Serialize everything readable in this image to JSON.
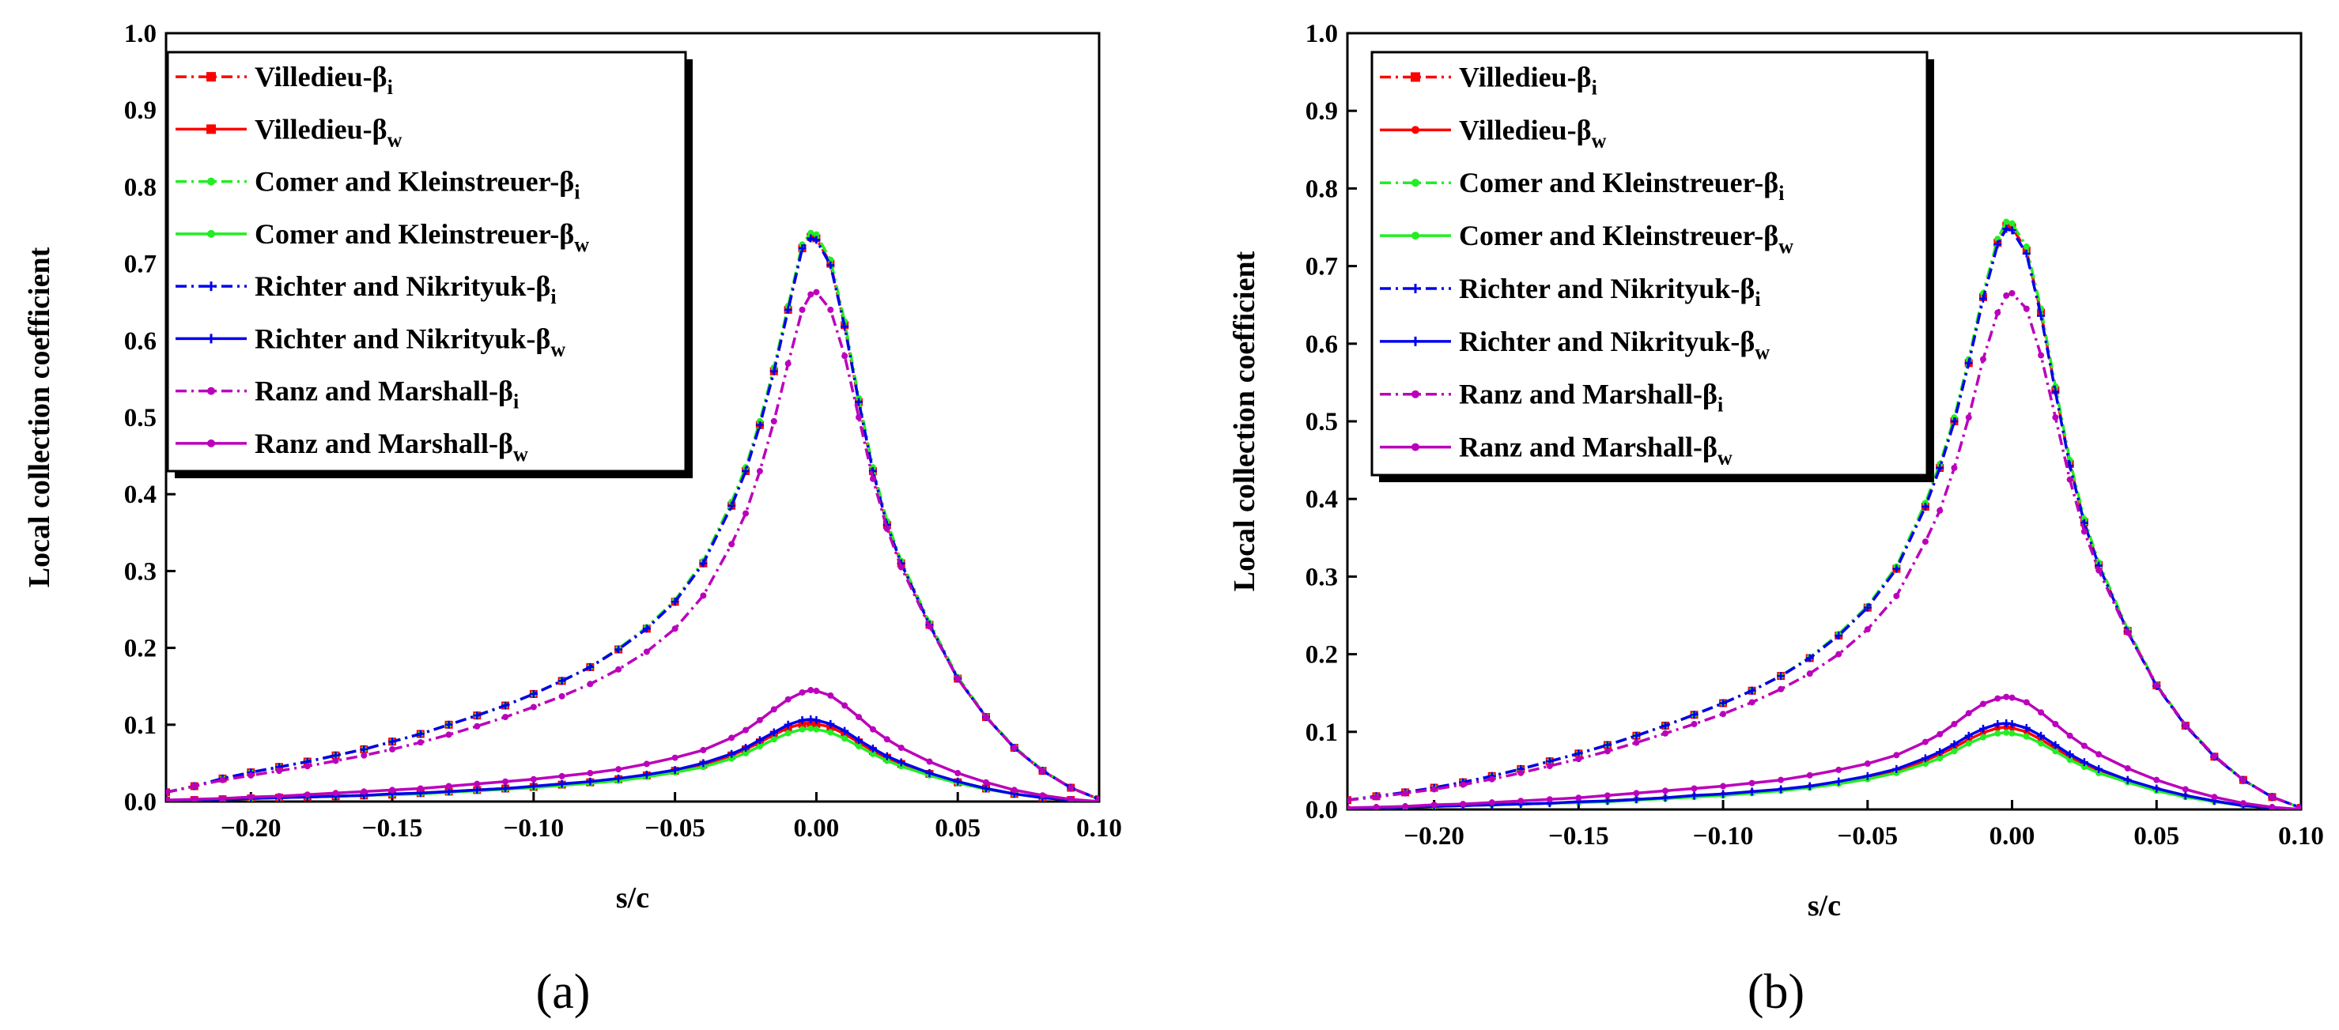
{
  "figure": {
    "panels": [
      {
        "label": "(a)"
      },
      {
        "label": "(b)"
      }
    ]
  },
  "chart_data": [
    {
      "type": "line",
      "panel": "(a)",
      "xlabel": "s/c",
      "ylabel": "Local collection coefficient",
      "xlim": [
        -0.23,
        0.1
      ],
      "ylim": [
        0.0,
        1.0
      ],
      "xticks": [
        "-0.20",
        "-0.15",
        "-0.10",
        "-0.05",
        "0.00",
        "0.05",
        "0.10"
      ],
      "yticks": [
        "0.0",
        "0.1",
        "0.2",
        "0.3",
        "0.4",
        "0.5",
        "0.6",
        "0.7",
        "0.8",
        "0.9",
        "1.0"
      ],
      "grid": false,
      "legend_position": "top-left",
      "x": [
        -0.23,
        -0.22,
        -0.21,
        -0.2,
        -0.19,
        -0.18,
        -0.17,
        -0.16,
        -0.15,
        -0.14,
        -0.13,
        -0.12,
        -0.11,
        -0.1,
        -0.09,
        -0.08,
        -0.07,
        -0.06,
        -0.05,
        -0.04,
        -0.03,
        -0.025,
        -0.02,
        -0.015,
        -0.01,
        -0.005,
        -0.002,
        0.0,
        0.005,
        0.01,
        0.015,
        0.02,
        0.025,
        0.03,
        0.04,
        0.05,
        0.06,
        0.07,
        0.08,
        0.09,
        0.1
      ],
      "series": [
        {
          "name": "Villedieu-βi",
          "label_main": "Villedieu-β",
          "label_sub": "i",
          "color": "#ff0000",
          "dash": "14,6,3,6",
          "marker": "square",
          "values": [
            0.012,
            0.02,
            0.03,
            0.038,
            0.045,
            0.052,
            0.06,
            0.068,
            0.078,
            0.088,
            0.1,
            0.112,
            0.125,
            0.14,
            0.157,
            0.175,
            0.198,
            0.225,
            0.26,
            0.31,
            0.385,
            0.43,
            0.49,
            0.56,
            0.64,
            0.72,
            0.735,
            0.733,
            0.7,
            0.62,
            0.52,
            0.43,
            0.36,
            0.31,
            0.23,
            0.16,
            0.11,
            0.07,
            0.04,
            0.018,
            0.003
          ]
        },
        {
          "name": "Villedieu-βw",
          "label_main": "Villedieu-β",
          "label_sub": "w",
          "color": "#ff0000",
          "dash": "",
          "marker": "square",
          "values": [
            0.001,
            0.002,
            0.003,
            0.004,
            0.005,
            0.006,
            0.007,
            0.008,
            0.009,
            0.011,
            0.013,
            0.015,
            0.017,
            0.019,
            0.022,
            0.025,
            0.029,
            0.034,
            0.04,
            0.048,
            0.06,
            0.068,
            0.077,
            0.087,
            0.096,
            0.101,
            0.102,
            0.101,
            0.097,
            0.088,
            0.077,
            0.066,
            0.057,
            0.049,
            0.036,
            0.025,
            0.017,
            0.01,
            0.005,
            0.002,
            0.0
          ]
        },
        {
          "name": "Comer and Kleinstreuer-βi",
          "label_main": "Comer and Kleinstreuer-β",
          "label_sub": "i",
          "color": "#22ee22",
          "dash": "14,6,3,6",
          "marker": "dot",
          "values": [
            0.012,
            0.02,
            0.03,
            0.038,
            0.045,
            0.052,
            0.06,
            0.068,
            0.078,
            0.088,
            0.1,
            0.112,
            0.125,
            0.14,
            0.157,
            0.175,
            0.199,
            0.227,
            0.262,
            0.313,
            0.39,
            0.435,
            0.495,
            0.565,
            0.645,
            0.725,
            0.74,
            0.738,
            0.705,
            0.625,
            0.525,
            0.435,
            0.365,
            0.313,
            0.233,
            0.162,
            0.111,
            0.071,
            0.041,
            0.018,
            0.003
          ]
        },
        {
          "name": "Comer and Kleinstreuer-βw",
          "label_main": "Comer and Kleinstreuer-β",
          "label_sub": "w",
          "color": "#22ee22",
          "dash": "",
          "marker": "dot",
          "values": [
            0.001,
            0.002,
            0.003,
            0.004,
            0.005,
            0.006,
            0.007,
            0.008,
            0.009,
            0.01,
            0.012,
            0.014,
            0.016,
            0.018,
            0.021,
            0.024,
            0.027,
            0.032,
            0.038,
            0.045,
            0.056,
            0.063,
            0.072,
            0.081,
            0.089,
            0.094,
            0.095,
            0.094,
            0.09,
            0.082,
            0.072,
            0.062,
            0.053,
            0.046,
            0.034,
            0.024,
            0.016,
            0.01,
            0.005,
            0.002,
            0.0
          ]
        },
        {
          "name": "Richter and Nikrityuk-βi",
          "label_main": "Richter and Nikrityuk-β",
          "label_sub": "i",
          "color": "#0000ee",
          "dash": "14,6,3,6",
          "marker": "cross",
          "values": [
            0.012,
            0.02,
            0.03,
            0.038,
            0.045,
            0.052,
            0.06,
            0.068,
            0.078,
            0.088,
            0.1,
            0.112,
            0.125,
            0.14,
            0.157,
            0.175,
            0.198,
            0.225,
            0.26,
            0.31,
            0.385,
            0.43,
            0.49,
            0.56,
            0.64,
            0.72,
            0.733,
            0.731,
            0.698,
            0.618,
            0.52,
            0.43,
            0.36,
            0.31,
            0.23,
            0.16,
            0.11,
            0.07,
            0.04,
            0.018,
            0.003
          ]
        },
        {
          "name": "Richter and Nikrityuk-βw",
          "label_main": "Richter and Nikrityuk-β",
          "label_sub": "w",
          "color": "#0000ee",
          "dash": "",
          "marker": "cross",
          "values": [
            0.001,
            0.002,
            0.003,
            0.004,
            0.005,
            0.006,
            0.007,
            0.008,
            0.01,
            0.011,
            0.013,
            0.015,
            0.017,
            0.02,
            0.023,
            0.026,
            0.03,
            0.035,
            0.041,
            0.05,
            0.062,
            0.07,
            0.08,
            0.09,
            0.1,
            0.106,
            0.107,
            0.106,
            0.101,
            0.092,
            0.08,
            0.069,
            0.059,
            0.051,
            0.037,
            0.026,
            0.017,
            0.01,
            0.005,
            0.002,
            0.0
          ]
        },
        {
          "name": "Ranz and Marshall-βi",
          "label_main": "Ranz and Marshall-β",
          "label_sub": "i",
          "color": "#bb00bb",
          "dash": "14,6,3,6",
          "marker": "dot",
          "values": [
            0.012,
            0.02,
            0.028,
            0.034,
            0.04,
            0.046,
            0.053,
            0.06,
            0.068,
            0.077,
            0.087,
            0.098,
            0.11,
            0.123,
            0.137,
            0.153,
            0.172,
            0.195,
            0.225,
            0.268,
            0.335,
            0.375,
            0.43,
            0.495,
            0.57,
            0.64,
            0.66,
            0.663,
            0.64,
            0.58,
            0.5,
            0.42,
            0.355,
            0.305,
            0.228,
            0.16,
            0.11,
            0.07,
            0.04,
            0.018,
            0.003
          ]
        },
        {
          "name": "Ranz and Marshall-βw",
          "label_main": "Ranz and Marshall-β",
          "label_sub": "w",
          "color": "#bb00bb",
          "dash": "",
          "marker": "dot",
          "values": [
            0.002,
            0.003,
            0.004,
            0.006,
            0.007,
            0.009,
            0.011,
            0.013,
            0.015,
            0.017,
            0.02,
            0.023,
            0.026,
            0.029,
            0.033,
            0.037,
            0.042,
            0.049,
            0.057,
            0.067,
            0.083,
            0.093,
            0.106,
            0.12,
            0.133,
            0.142,
            0.145,
            0.144,
            0.138,
            0.125,
            0.11,
            0.094,
            0.081,
            0.07,
            0.052,
            0.037,
            0.025,
            0.015,
            0.008,
            0.003,
            0.0
          ]
        }
      ]
    },
    {
      "type": "line",
      "panel": "(b)",
      "xlabel": "s/c",
      "ylabel": "Local collection coefficient",
      "xlim": [
        -0.23,
        0.1
      ],
      "ylim": [
        0.0,
        1.0
      ],
      "xticks": [
        "-0.20",
        "-0.15",
        "-0.10",
        "-0.05",
        "0.00",
        "0.05",
        "0.10"
      ],
      "yticks": [
        "0.0",
        "0.1",
        "0.2",
        "0.3",
        "0.4",
        "0.5",
        "0.6",
        "0.7",
        "0.8",
        "0.9",
        "1.0"
      ],
      "grid": false,
      "legend_position": "top-left",
      "x": [
        -0.23,
        -0.22,
        -0.21,
        -0.2,
        -0.19,
        -0.18,
        -0.17,
        -0.16,
        -0.15,
        -0.14,
        -0.13,
        -0.12,
        -0.11,
        -0.1,
        -0.09,
        -0.08,
        -0.07,
        -0.06,
        -0.05,
        -0.04,
        -0.03,
        -0.025,
        -0.02,
        -0.015,
        -0.01,
        -0.005,
        -0.002,
        0.0,
        0.005,
        0.01,
        0.015,
        0.02,
        0.025,
        0.03,
        0.04,
        0.05,
        0.06,
        0.07,
        0.08,
        0.09,
        0.1
      ],
      "series": [
        {
          "name": "Villedieu-βi",
          "label_main": "Villedieu-β",
          "label_sub": "i",
          "color": "#ff0000",
          "dash": "14,6,3,6",
          "marker": "square",
          "values": [
            0.012,
            0.017,
            0.022,
            0.028,
            0.035,
            0.043,
            0.052,
            0.062,
            0.072,
            0.083,
            0.095,
            0.108,
            0.122,
            0.137,
            0.153,
            0.172,
            0.195,
            0.224,
            0.26,
            0.31,
            0.39,
            0.44,
            0.5,
            0.575,
            0.66,
            0.73,
            0.752,
            0.75,
            0.72,
            0.64,
            0.54,
            0.445,
            0.37,
            0.315,
            0.23,
            0.16,
            0.108,
            0.068,
            0.038,
            0.016,
            0.002
          ]
        },
        {
          "name": "Villedieu-βw",
          "label_main": "Villedieu-β",
          "label_sub": "w",
          "color": "#ff0000",
          "dash": "",
          "marker": "dot",
          "values": [
            0.001,
            0.002,
            0.003,
            0.004,
            0.005,
            0.006,
            0.007,
            0.008,
            0.009,
            0.011,
            0.013,
            0.015,
            0.017,
            0.019,
            0.022,
            0.025,
            0.029,
            0.034,
            0.041,
            0.05,
            0.063,
            0.071,
            0.08,
            0.09,
            0.099,
            0.105,
            0.106,
            0.105,
            0.1,
            0.09,
            0.079,
            0.068,
            0.058,
            0.05,
            0.037,
            0.026,
            0.017,
            0.01,
            0.005,
            0.002,
            0.0
          ]
        },
        {
          "name": "Comer and Kleinstreuer-βi",
          "label_main": "Comer and Kleinstreuer-β",
          "label_sub": "i",
          "color": "#22ee22",
          "dash": "14,6,3,6",
          "marker": "dot",
          "values": [
            0.012,
            0.017,
            0.022,
            0.028,
            0.035,
            0.043,
            0.052,
            0.062,
            0.072,
            0.083,
            0.095,
            0.108,
            0.122,
            0.137,
            0.153,
            0.172,
            0.196,
            0.226,
            0.262,
            0.313,
            0.395,
            0.445,
            0.505,
            0.58,
            0.665,
            0.735,
            0.757,
            0.755,
            0.725,
            0.645,
            0.545,
            0.45,
            0.374,
            0.318,
            0.232,
            0.161,
            0.109,
            0.069,
            0.038,
            0.016,
            0.002
          ]
        },
        {
          "name": "Comer and Kleinstreuer-βw",
          "label_main": "Comer and Kleinstreuer-β",
          "label_sub": "w",
          "color": "#22ee22",
          "dash": "",
          "marker": "dot",
          "values": [
            0.001,
            0.002,
            0.003,
            0.004,
            0.005,
            0.006,
            0.007,
            0.008,
            0.009,
            0.01,
            0.012,
            0.014,
            0.016,
            0.018,
            0.021,
            0.024,
            0.028,
            0.033,
            0.039,
            0.047,
            0.059,
            0.066,
            0.075,
            0.085,
            0.093,
            0.098,
            0.099,
            0.098,
            0.094,
            0.085,
            0.075,
            0.064,
            0.055,
            0.047,
            0.035,
            0.024,
            0.016,
            0.01,
            0.005,
            0.002,
            0.0
          ]
        },
        {
          "name": "Richter and Nikrityuk-βi",
          "label_main": "Richter and Nikrityuk-β",
          "label_sub": "i",
          "color": "#0000ee",
          "dash": "14,6,3,6",
          "marker": "cross",
          "values": [
            0.012,
            0.017,
            0.022,
            0.028,
            0.035,
            0.043,
            0.052,
            0.062,
            0.072,
            0.083,
            0.095,
            0.108,
            0.122,
            0.137,
            0.153,
            0.172,
            0.195,
            0.224,
            0.26,
            0.31,
            0.39,
            0.44,
            0.5,
            0.575,
            0.658,
            0.728,
            0.748,
            0.746,
            0.716,
            0.636,
            0.538,
            0.443,
            0.369,
            0.314,
            0.229,
            0.159,
            0.108,
            0.068,
            0.038,
            0.016,
            0.002
          ]
        },
        {
          "name": "Richter and Nikrityuk-βw",
          "label_main": "Richter and Nikrityuk-β",
          "label_sub": "w",
          "color": "#0000ee",
          "dash": "",
          "marker": "cross",
          "values": [
            0.001,
            0.002,
            0.003,
            0.004,
            0.005,
            0.006,
            0.007,
            0.008,
            0.01,
            0.011,
            0.013,
            0.015,
            0.018,
            0.02,
            0.023,
            0.026,
            0.03,
            0.036,
            0.043,
            0.052,
            0.066,
            0.074,
            0.084,
            0.095,
            0.104,
            0.11,
            0.111,
            0.11,
            0.105,
            0.095,
            0.083,
            0.071,
            0.061,
            0.052,
            0.038,
            0.027,
            0.018,
            0.011,
            0.005,
            0.002,
            0.0
          ]
        },
        {
          "name": "Ranz and Marshall-βi",
          "label_main": "Ranz and Marshall-β",
          "label_sub": "i",
          "color": "#bb00bb",
          "dash": "14,6,3,6",
          "marker": "dot",
          "values": [
            0.012,
            0.016,
            0.021,
            0.026,
            0.032,
            0.039,
            0.047,
            0.056,
            0.065,
            0.075,
            0.086,
            0.098,
            0.11,
            0.123,
            0.138,
            0.155,
            0.175,
            0.2,
            0.232,
            0.275,
            0.345,
            0.385,
            0.44,
            0.505,
            0.58,
            0.64,
            0.662,
            0.665,
            0.645,
            0.585,
            0.505,
            0.425,
            0.358,
            0.308,
            0.228,
            0.16,
            0.109,
            0.069,
            0.038,
            0.016,
            0.002
          ]
        },
        {
          "name": "Ranz and Marshall-βw",
          "label_main": "Ranz and Marshall-β",
          "label_sub": "w",
          "color": "#bb00bb",
          "dash": "",
          "marker": "dot",
          "values": [
            0.002,
            0.003,
            0.004,
            0.006,
            0.007,
            0.009,
            0.011,
            0.013,
            0.015,
            0.018,
            0.021,
            0.024,
            0.027,
            0.03,
            0.034,
            0.038,
            0.044,
            0.051,
            0.059,
            0.07,
            0.087,
            0.097,
            0.11,
            0.124,
            0.136,
            0.143,
            0.145,
            0.144,
            0.138,
            0.125,
            0.11,
            0.095,
            0.082,
            0.071,
            0.053,
            0.038,
            0.026,
            0.016,
            0.008,
            0.003,
            0.0
          ]
        }
      ]
    }
  ]
}
